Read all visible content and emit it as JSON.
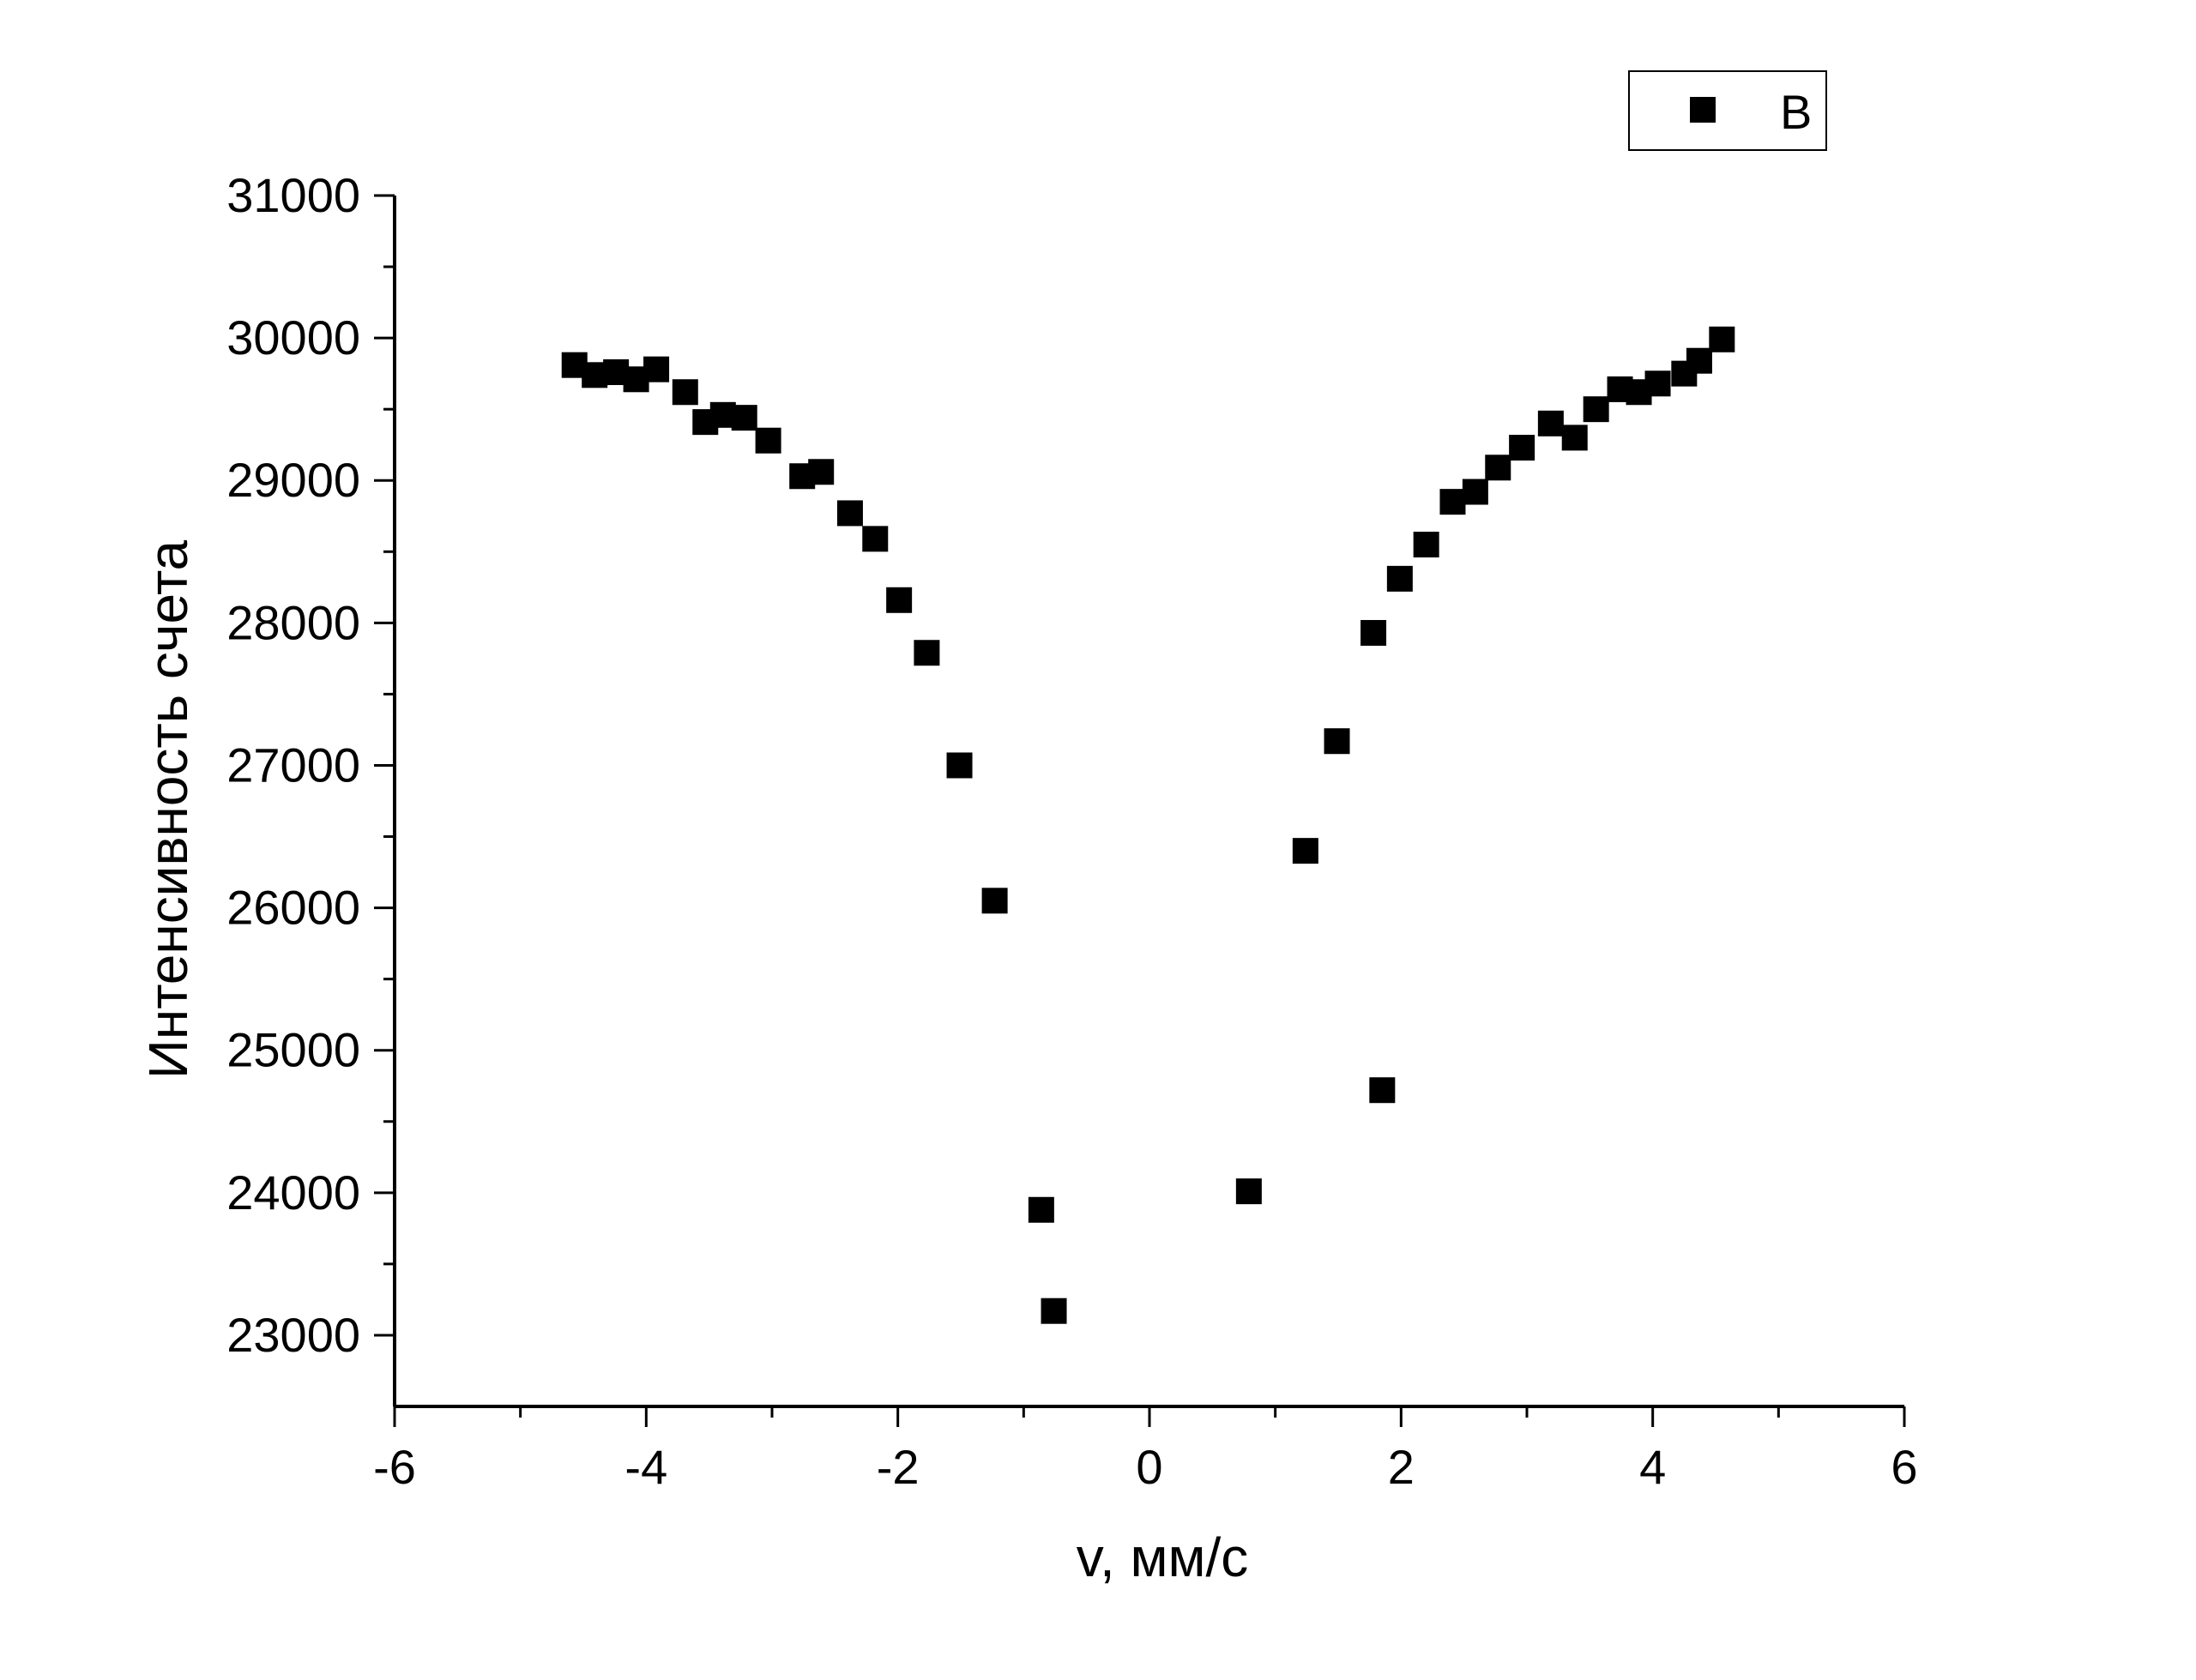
{
  "chart_data": {
    "type": "scatter",
    "title": "",
    "xlabel": "v, мм/с",
    "ylabel": "Интенсивность счета",
    "xlim": [
      -6,
      6
    ],
    "ylim": [
      22500,
      31000
    ],
    "x_ticks": [
      "-6",
      "-4",
      "-2",
      "0",
      "2",
      "4",
      "6"
    ],
    "y_ticks": [
      "23000",
      "24000",
      "25000",
      "26000",
      "27000",
      "28000",
      "29000",
      "30000",
      "31000"
    ],
    "grid": false,
    "legend_position": "top-right",
    "series": [
      {
        "name": "B",
        "marker": "square",
        "color": "#000000",
        "points": [
          [
            -4.57,
            29810
          ],
          [
            -4.41,
            29740
          ],
          [
            -4.24,
            29760
          ],
          [
            -4.08,
            29710
          ],
          [
            -3.92,
            29780
          ],
          [
            -3.69,
            29620
          ],
          [
            -3.53,
            29410
          ],
          [
            -3.39,
            29460
          ],
          [
            -3.22,
            29440
          ],
          [
            -3.03,
            29280
          ],
          [
            -2.76,
            29030
          ],
          [
            -2.61,
            29060
          ],
          [
            -2.38,
            28770
          ],
          [
            -2.18,
            28590
          ],
          [
            -1.99,
            28160
          ],
          [
            -1.77,
            27790
          ],
          [
            -1.51,
            27000
          ],
          [
            -1.23,
            26050
          ],
          [
            -0.86,
            23880
          ],
          [
            -0.76,
            23170
          ],
          [
            0.79,
            24010
          ],
          [
            1.24,
            26400
          ],
          [
            1.49,
            27170
          ],
          [
            1.78,
            27930
          ],
          [
            1.85,
            24720
          ],
          [
            1.99,
            28310
          ],
          [
            2.2,
            28550
          ],
          [
            2.41,
            28850
          ],
          [
            2.59,
            28920
          ],
          [
            2.77,
            29090
          ],
          [
            2.96,
            29230
          ],
          [
            3.19,
            29400
          ],
          [
            3.38,
            29300
          ],
          [
            3.55,
            29500
          ],
          [
            3.74,
            29640
          ],
          [
            3.89,
            29620
          ],
          [
            4.04,
            29680
          ],
          [
            4.25,
            29750
          ],
          [
            4.37,
            29840
          ],
          [
            4.55,
            29990
          ]
        ]
      }
    ]
  }
}
